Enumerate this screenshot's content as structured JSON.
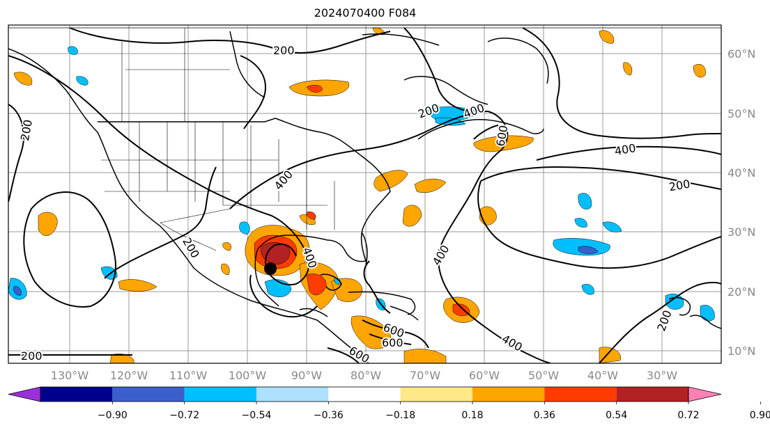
{
  "title": "2024070400 F084",
  "map": {
    "lon_labels": [
      "130°W",
      "120°W",
      "110°W",
      "100°W",
      "90°W",
      "80°W",
      "70°W",
      "60°W",
      "50°W",
      "40°W",
      "30°W"
    ],
    "lat_labels": [
      "60°N",
      "50°N",
      "40°N",
      "30°N",
      "20°N",
      "10°N"
    ],
    "contour_labels": [
      "200",
      "200",
      "200",
      "200",
      "200",
      "200",
      "200",
      "400",
      "400",
      "400",
      "400",
      "400",
      "400",
      "600",
      "600",
      "600",
      "600"
    ],
    "storm_marker": "black-dot"
  },
  "colorbar": {
    "tick_labels": [
      "−0.90",
      "−0.72",
      "−0.54",
      "−0.36",
      "−0.18",
      "0.18",
      "0.36",
      "0.54",
      "0.72",
      "0.90"
    ],
    "colors": [
      "#9b30d9",
      "#00008b",
      "#3a5fcd",
      "#00bfff",
      "#aee0ff",
      "#ffffff",
      "#ffe88a",
      "#ffa500",
      "#ff3c00",
      "#b22222",
      "#ff82b4"
    ]
  }
}
